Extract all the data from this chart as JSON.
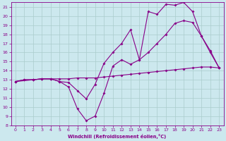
{
  "xlabel": "Windchill (Refroidissement éolien,°C)",
  "bg_color": "#cce8ee",
  "line_color": "#880088",
  "grid_color": "#aacccc",
  "xlim": [
    -0.5,
    23.5
  ],
  "ylim": [
    8,
    21.5
  ],
  "xticks": [
    0,
    1,
    2,
    3,
    4,
    5,
    6,
    7,
    8,
    9,
    10,
    11,
    12,
    13,
    14,
    15,
    16,
    17,
    18,
    19,
    20,
    21,
    22,
    23
  ],
  "yticks": [
    8,
    9,
    10,
    11,
    12,
    13,
    14,
    15,
    16,
    17,
    18,
    19,
    20,
    21
  ],
  "series": [
    {
      "x": [
        0,
        1,
        2,
        3,
        4,
        5,
        6,
        7,
        8,
        9,
        10,
        11,
        12,
        13,
        14,
        15,
        16,
        17,
        18,
        19,
        20,
        21,
        22,
        23
      ],
      "y": [
        12.8,
        13.0,
        13.0,
        13.1,
        13.1,
        13.1,
        13.1,
        13.2,
        13.2,
        13.2,
        13.3,
        13.4,
        13.5,
        13.6,
        13.7,
        13.8,
        13.9,
        14.0,
        14.1,
        14.2,
        14.3,
        14.4,
        14.4,
        14.3
      ]
    },
    {
      "x": [
        0,
        1,
        2,
        3,
        4,
        5,
        6,
        7,
        8,
        9,
        10,
        11,
        12,
        13,
        14,
        15,
        16,
        17,
        18,
        19,
        20,
        21,
        22,
        23
      ],
      "y": [
        12.8,
        13.0,
        13.0,
        13.1,
        13.1,
        12.8,
        12.7,
        11.8,
        10.9,
        12.5,
        14.8,
        16.0,
        17.0,
        18.5,
        15.2,
        16.0,
        17.0,
        18.0,
        19.2,
        19.5,
        19.3,
        17.8,
        16.0,
        14.3
      ]
    },
    {
      "x": [
        0,
        2,
        3,
        4,
        5,
        6,
        7,
        8,
        9,
        10,
        11,
        12,
        13,
        14,
        15,
        16,
        17,
        18,
        19,
        20,
        21,
        22,
        23
      ],
      "y": [
        12.8,
        13.0,
        13.1,
        13.1,
        12.8,
        12.2,
        9.8,
        8.5,
        9.0,
        11.5,
        14.5,
        15.2,
        14.7,
        15.2,
        20.5,
        20.2,
        21.3,
        21.2,
        21.5,
        20.5,
        17.8,
        16.2,
        14.3
      ]
    }
  ]
}
